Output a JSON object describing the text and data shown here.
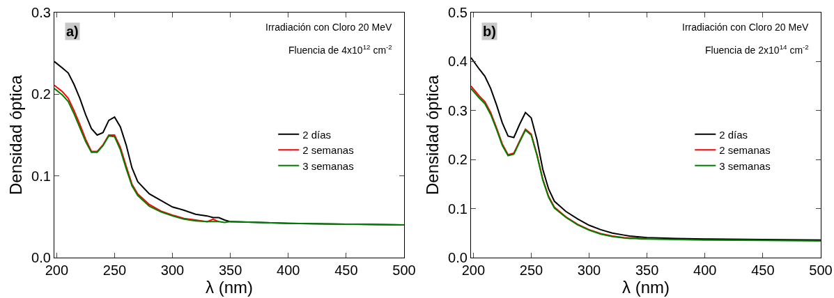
{
  "chart_data": [
    {
      "type": "line",
      "xlabel": "λ (nm)",
      "ylabel": "Densidad óptica",
      "xlim": [
        198,
        500
      ],
      "xticks": [
        200,
        250,
        300,
        350,
        400,
        450,
        500
      ],
      "ylim": [
        0,
        0.3
      ],
      "yticks": [
        {
          "value": 0,
          "label": "0.0"
        },
        0.1,
        0.2,
        0.3
      ],
      "grid": false,
      "legend": "right",
      "marker": "none",
      "line_style": "solid",
      "annotations": [
        "a)",
        "Irradiación con Cloro 20 MeV",
        "Fluencia de 4x10$^{12}$ cm$^{-2}$"
      ],
      "x": [
        198,
        205,
        210,
        215,
        220,
        225,
        230,
        235,
        240,
        245,
        250,
        255,
        260,
        265,
        270,
        280,
        290,
        300,
        310,
        320,
        330,
        335,
        340,
        345,
        350,
        375,
        400,
        450,
        500
      ],
      "series": [
        {
          "name": "2 días",
          "color": "#000000",
          "values": [
            0.24,
            0.232,
            0.226,
            0.212,
            0.195,
            0.175,
            0.158,
            0.15,
            0.153,
            0.168,
            0.172,
            0.16,
            0.138,
            0.11,
            0.093,
            0.078,
            0.07,
            0.062,
            0.058,
            0.053,
            0.051,
            0.049,
            0.049,
            0.046,
            0.044,
            0.043,
            0.042,
            0.041,
            0.04
          ]
        },
        {
          "name": "2 semanas",
          "color": "#ff0000",
          "values": [
            0.211,
            0.203,
            0.195,
            0.18,
            0.163,
            0.145,
            0.13,
            0.13,
            0.138,
            0.15,
            0.15,
            0.135,
            0.112,
            0.09,
            0.078,
            0.065,
            0.057,
            0.052,
            0.048,
            0.046,
            0.044,
            0.047,
            0.044,
            null,
            null,
            null,
            null,
            null,
            null
          ]
        },
        {
          "name": "3 semanas",
          "color": "#008000",
          "values": [
            0.207,
            0.199,
            0.191,
            0.176,
            0.159,
            0.142,
            0.129,
            0.129,
            0.137,
            0.149,
            0.148,
            0.132,
            0.109,
            0.088,
            0.076,
            0.063,
            0.056,
            0.051,
            0.047,
            0.045,
            0.044,
            0.044,
            0.044,
            0.043,
            0.044,
            0.043,
            0.042,
            0.041,
            0.04
          ]
        }
      ]
    },
    {
      "type": "line",
      "xlabel": "λ (nm)",
      "ylabel": "Densidad óptica",
      "xlim": [
        198,
        500
      ],
      "xticks": [
        200,
        250,
        300,
        350,
        400,
        450,
        500
      ],
      "ylim": [
        0,
        0.5
      ],
      "yticks": [
        {
          "value": 0,
          "label": "0.0"
        },
        0.1,
        0.2,
        0.3,
        0.4,
        0.5
      ],
      "grid": false,
      "legend": "right",
      "marker": "none",
      "line_style": "solid",
      "annotations": [
        "b)",
        "Irradiación con Cloro 20 MeV",
        "Fluencia de 2x10$^{14}$ cm$^{-2}$"
      ],
      "x": [
        198,
        205,
        210,
        215,
        220,
        225,
        230,
        235,
        240,
        245,
        250,
        255,
        260,
        265,
        270,
        280,
        290,
        300,
        310,
        320,
        330,
        335,
        340,
        345,
        350,
        375,
        400,
        450,
        500
      ],
      "series": [
        {
          "name": "2 días",
          "color": "#000000",
          "values": [
            0.408,
            0.385,
            0.37,
            0.345,
            0.312,
            0.275,
            0.248,
            0.245,
            0.272,
            0.296,
            0.285,
            0.24,
            0.18,
            0.14,
            0.115,
            0.094,
            0.079,
            0.066,
            0.057,
            0.05,
            0.046,
            0.044,
            0.043,
            0.042,
            0.041,
            0.039,
            0.038,
            0.037,
            0.036
          ]
        },
        {
          "name": "2 semanas",
          "color": "#ff0000",
          "values": [
            0.35,
            0.33,
            0.318,
            0.296,
            0.265,
            0.232,
            0.21,
            0.213,
            0.238,
            0.262,
            0.252,
            0.21,
            0.16,
            0.125,
            0.103,
            0.083,
            0.068,
            0.057,
            0.049,
            0.044,
            0.041,
            0.04,
            0.04,
            0.039,
            0.039,
            null,
            null,
            null,
            null
          ]
        },
        {
          "name": "3 semanas",
          "color": "#008000",
          "values": [
            0.345,
            0.326,
            0.314,
            0.292,
            0.262,
            0.229,
            0.208,
            0.211,
            0.236,
            0.26,
            0.25,
            0.208,
            0.158,
            0.123,
            0.101,
            0.082,
            0.067,
            0.056,
            0.048,
            0.043,
            0.04,
            0.039,
            0.039,
            0.038,
            0.038,
            0.037,
            0.036,
            0.035,
            0.034
          ]
        }
      ]
    }
  ]
}
